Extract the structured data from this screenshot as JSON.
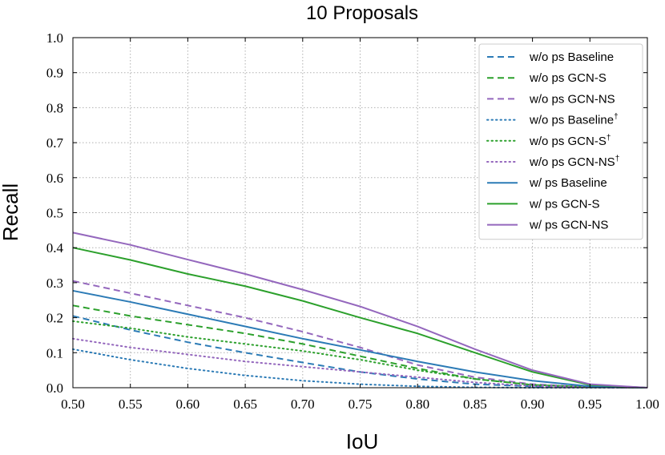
{
  "chart_data": {
    "type": "line",
    "title": "10 Proposals",
    "xlabel": "IoU",
    "ylabel": "Recall",
    "xlim": [
      0.5,
      1.0
    ],
    "ylim": [
      0.0,
      1.0
    ],
    "grid": true,
    "legend_position": "top-right",
    "x_ticks": [
      "0.50",
      "0.55",
      "0.60",
      "0.65",
      "0.70",
      "0.75",
      "0.80",
      "0.85",
      "0.90",
      "0.95",
      "1.00"
    ],
    "y_ticks": [
      "0.0",
      "0.1",
      "0.2",
      "0.3",
      "0.4",
      "0.5",
      "0.6",
      "0.7",
      "0.8",
      "0.9",
      "1.0"
    ],
    "x": [
      0.5,
      0.55,
      0.6,
      0.65,
      0.7,
      0.75,
      0.8,
      0.85,
      0.9,
      0.95,
      1.0
    ],
    "series": [
      {
        "name": "w/o ps Baseline",
        "dagger": false,
        "style": "dashed",
        "color": "#2c7bb6",
        "values": [
          0.205,
          0.165,
          0.13,
          0.1,
          0.072,
          0.045,
          0.025,
          0.01,
          0.004,
          0.001,
          0.0
        ]
      },
      {
        "name": "w/o ps GCN-S",
        "dagger": false,
        "style": "dashed",
        "color": "#2ca02c",
        "values": [
          0.235,
          0.205,
          0.18,
          0.155,
          0.125,
          0.09,
          0.055,
          0.025,
          0.008,
          0.002,
          0.0
        ]
      },
      {
        "name": "w/o ps GCN-NS",
        "dagger": false,
        "style": "dashed",
        "color": "#9467bd",
        "values": [
          0.305,
          0.27,
          0.235,
          0.2,
          0.16,
          0.115,
          0.065,
          0.03,
          0.01,
          0.002,
          0.0
        ]
      },
      {
        "name": "w/o ps Baseline",
        "dagger": true,
        "style": "dotted",
        "color": "#2c7bb6",
        "values": [
          0.11,
          0.08,
          0.055,
          0.035,
          0.02,
          0.01,
          0.004,
          0.001,
          0.0,
          0.0,
          0.0
        ]
      },
      {
        "name": "w/o ps GCN-S",
        "dagger": true,
        "style": "dotted",
        "color": "#2ca02c",
        "values": [
          0.19,
          0.17,
          0.145,
          0.125,
          0.105,
          0.08,
          0.05,
          0.025,
          0.008,
          0.002,
          0.0
        ]
      },
      {
        "name": "w/o ps GCN-NS",
        "dagger": true,
        "style": "dotted",
        "color": "#9467bd",
        "values": [
          0.14,
          0.115,
          0.095,
          0.075,
          0.06,
          0.045,
          0.03,
          0.015,
          0.005,
          0.001,
          0.0
        ]
      },
      {
        "name": "w/ ps Baseline",
        "dagger": false,
        "style": "solid",
        "color": "#2c7bb6",
        "values": [
          0.277,
          0.245,
          0.21,
          0.175,
          0.14,
          0.108,
          0.075,
          0.045,
          0.02,
          0.004,
          0.0
        ]
      },
      {
        "name": "w/ ps GCN-S",
        "dagger": false,
        "style": "solid",
        "color": "#2ca02c",
        "values": [
          0.4,
          0.365,
          0.325,
          0.29,
          0.248,
          0.2,
          0.155,
          0.1,
          0.045,
          0.008,
          0.0
        ]
      },
      {
        "name": "w/ ps GCN-NS",
        "dagger": false,
        "style": "solid",
        "color": "#9467bd",
        "values": [
          0.443,
          0.408,
          0.366,
          0.325,
          0.28,
          0.232,
          0.175,
          0.11,
          0.05,
          0.01,
          0.0
        ]
      }
    ]
  }
}
